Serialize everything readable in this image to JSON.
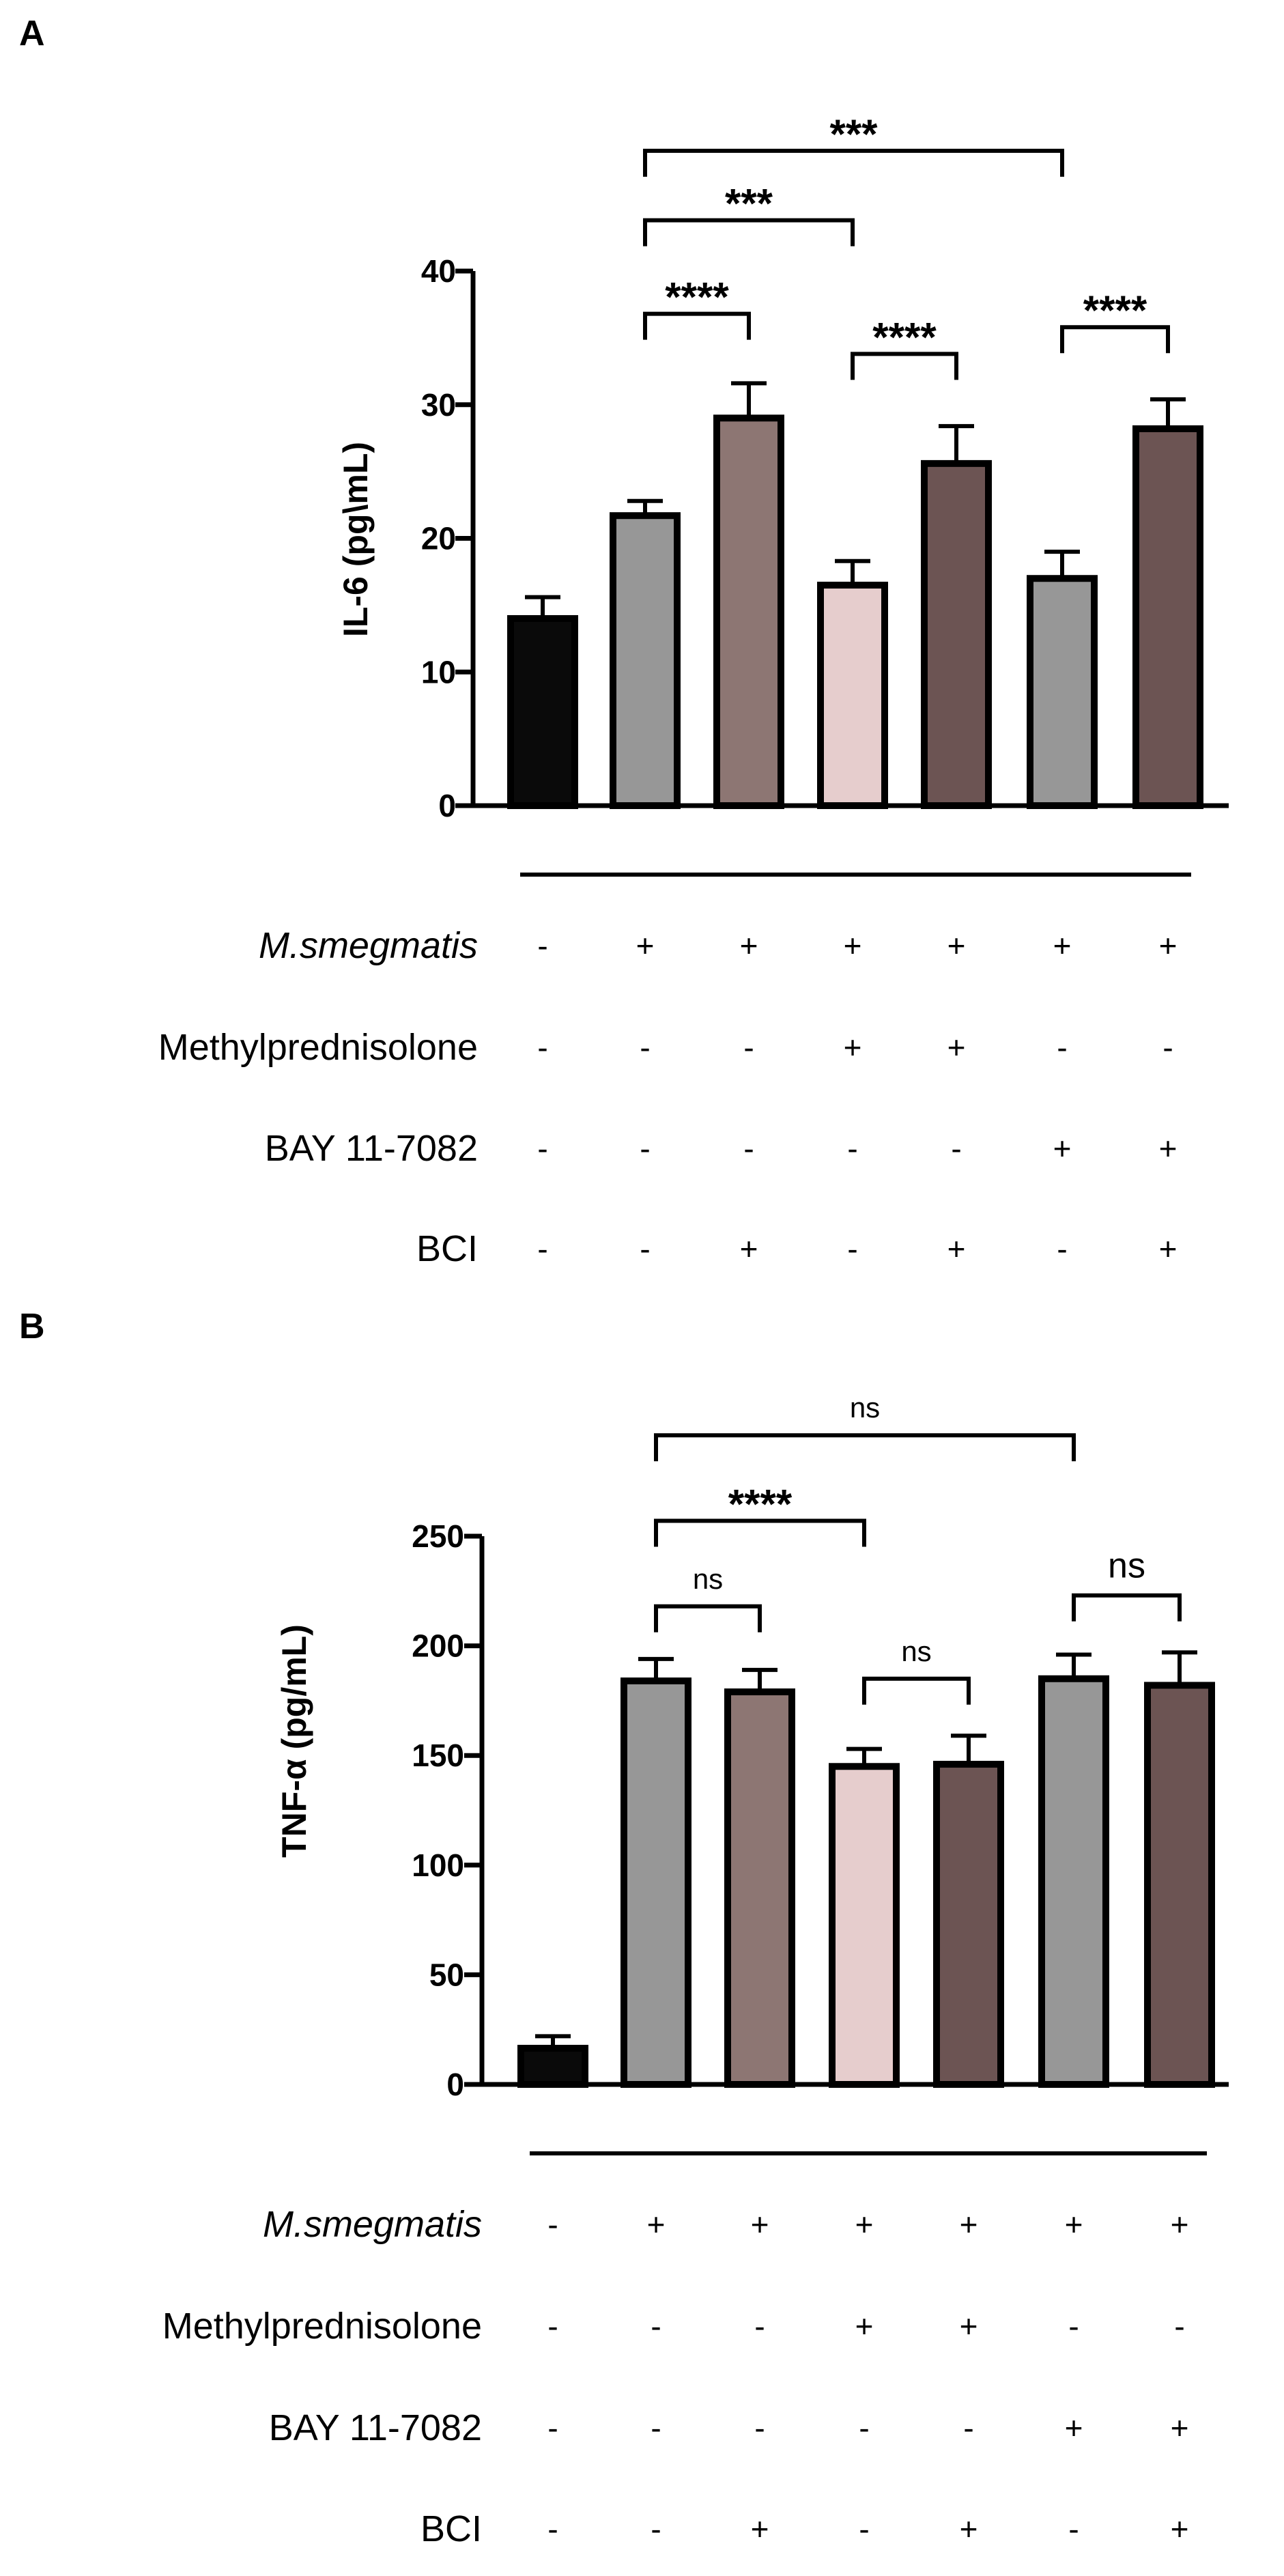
{
  "colors": {
    "control": "#0a0a0a",
    "grey": "#979797",
    "mauve": "#8d7673",
    "pink": "#e6cdcd",
    "brown": "#6c5453"
  },
  "chart_data": [
    {
      "panel_label": "A",
      "type": "bar",
      "ylabel": "IL-6 (pg\\mL)",
      "ylim": [
        0,
        40
      ],
      "yticks": [
        0,
        10,
        20,
        30,
        40
      ],
      "ytick_labels": [
        "0",
        "10",
        "20",
        "30",
        "40"
      ],
      "values": [
        14.0,
        21.7,
        29.0,
        16.5,
        25.6,
        17.0,
        28.2
      ],
      "errors": [
        1.6,
        1.1,
        2.6,
        1.8,
        2.8,
        2.0,
        2.2
      ],
      "bar_colors": [
        "control",
        "grey",
        "mauve",
        "pink",
        "brown",
        "grey",
        "brown"
      ],
      "brackets": [
        {
          "from": 1,
          "to": 5,
          "label": "***",
          "y": 49
        },
        {
          "from": 1,
          "to": 3,
          "label": "***",
          "y": 43.8
        },
        {
          "from": 1,
          "to": 2,
          "label": "****",
          "y": 36.8
        },
        {
          "from": 3,
          "to": 4,
          "label": "****",
          "y": 33.8
        },
        {
          "from": 5,
          "to": 6,
          "label": "****",
          "y": 35.8
        }
      ],
      "rows": [
        {
          "label": "M.smegmatis",
          "italic": true,
          "signs": [
            "-",
            "+",
            "+",
            "+",
            "+",
            "+",
            "+"
          ]
        },
        {
          "label": "Methylprednisolone",
          "italic": false,
          "signs": [
            "-",
            "-",
            "-",
            "+",
            "+",
            "-",
            "-"
          ]
        },
        {
          "label": "BAY 11-7082",
          "italic": false,
          "signs": [
            "-",
            "-",
            "-",
            "-",
            "-",
            "+",
            "+"
          ]
        },
        {
          "label": "BCI",
          "italic": false,
          "signs": [
            "-",
            "-",
            "+",
            "-",
            "+",
            "-",
            "+"
          ]
        }
      ]
    },
    {
      "panel_label": "B",
      "type": "bar",
      "ylabel": "TNF-α (pg/mL)",
      "ylim": [
        0,
        250
      ],
      "yticks": [
        0,
        50,
        100,
        150,
        200,
        250
      ],
      "ytick_labels": [
        "0",
        "50",
        "100",
        "150",
        "200",
        "250"
      ],
      "values": [
        16.5,
        184.0,
        179.0,
        145.0,
        146.0,
        185.0,
        182.0
      ],
      "errors": [
        5.5,
        10.0,
        10.0,
        8.0,
        13.0,
        11.0,
        15.0
      ],
      "bar_colors": [
        "control",
        "grey",
        "mauve",
        "pink",
        "brown",
        "grey",
        "brown"
      ],
      "brackets": [
        {
          "from": 1,
          "to": 5,
          "label": "ns",
          "y": 296
        },
        {
          "from": 1,
          "to": 3,
          "label": "****",
          "y": 257
        },
        {
          "from": 1,
          "to": 2,
          "label": "ns",
          "y": 218
        },
        {
          "from": 3,
          "to": 4,
          "label": "ns",
          "y": 185
        },
        {
          "from": 5,
          "to": 6,
          "label": "ns",
          "y": 223
        }
      ],
      "rows": [
        {
          "label": "M.smegmatis",
          "italic": true,
          "signs": [
            "-",
            "+",
            "+",
            "+",
            "+",
            "+",
            "+"
          ]
        },
        {
          "label": "Methylprednisolone",
          "italic": false,
          "signs": [
            "-",
            "-",
            "-",
            "+",
            "+",
            "-",
            "-"
          ]
        },
        {
          "label": "BAY 11-7082",
          "italic": false,
          "signs": [
            "-",
            "-",
            "-",
            "-",
            "-",
            "+",
            "+"
          ]
        },
        {
          "label": "BCI",
          "italic": false,
          "signs": [
            "-",
            "-",
            "+",
            "-",
            "+",
            "-",
            "+"
          ]
        }
      ]
    }
  ]
}
